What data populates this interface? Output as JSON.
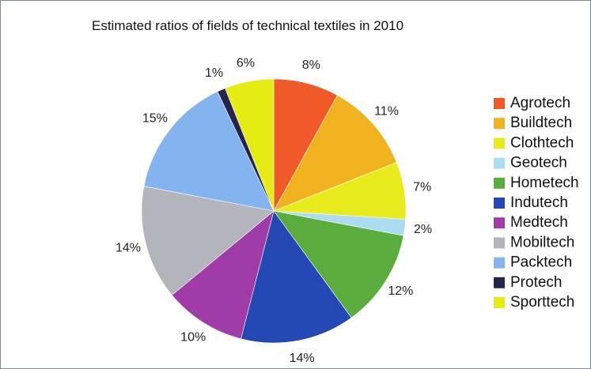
{
  "chart_data": {
    "type": "pie",
    "title": "Estimated ratios of fields of technical textiles in 2010",
    "legend_position": "right",
    "slices": [
      {
        "label": "Agrotech",
        "value": 8,
        "display": "8%",
        "color": "#f05a28"
      },
      {
        "label": "Buildtech",
        "value": 11,
        "display": "11%",
        "color": "#f0b21e"
      },
      {
        "label": "Clothtech",
        "value": 7,
        "display": "7%",
        "color": "#e8ec1c"
      },
      {
        "label": "Geotech",
        "value": 2,
        "display": "2%",
        "color": "#acdcf0"
      },
      {
        "label": "Hometech",
        "value": 12,
        "display": "12%",
        "color": "#5aac3c"
      },
      {
        "label": "Indutech",
        "value": 14,
        "display": "14%",
        "color": "#2448b4"
      },
      {
        "label": "Medtech",
        "value": 10,
        "display": "10%",
        "color": "#a03ca8"
      },
      {
        "label": "Mobiltech",
        "value": 14,
        "display": "14%",
        "color": "#b4b4bc"
      },
      {
        "label": "Packtech",
        "value": 15,
        "display": "15%",
        "color": "#84b4f0"
      },
      {
        "label": "Protech",
        "value": 1,
        "display": "1%",
        "color": "#24244c"
      },
      {
        "label": "Sporttech",
        "value": 6,
        "display": "6%",
        "color": "#e4ec14"
      }
    ]
  }
}
